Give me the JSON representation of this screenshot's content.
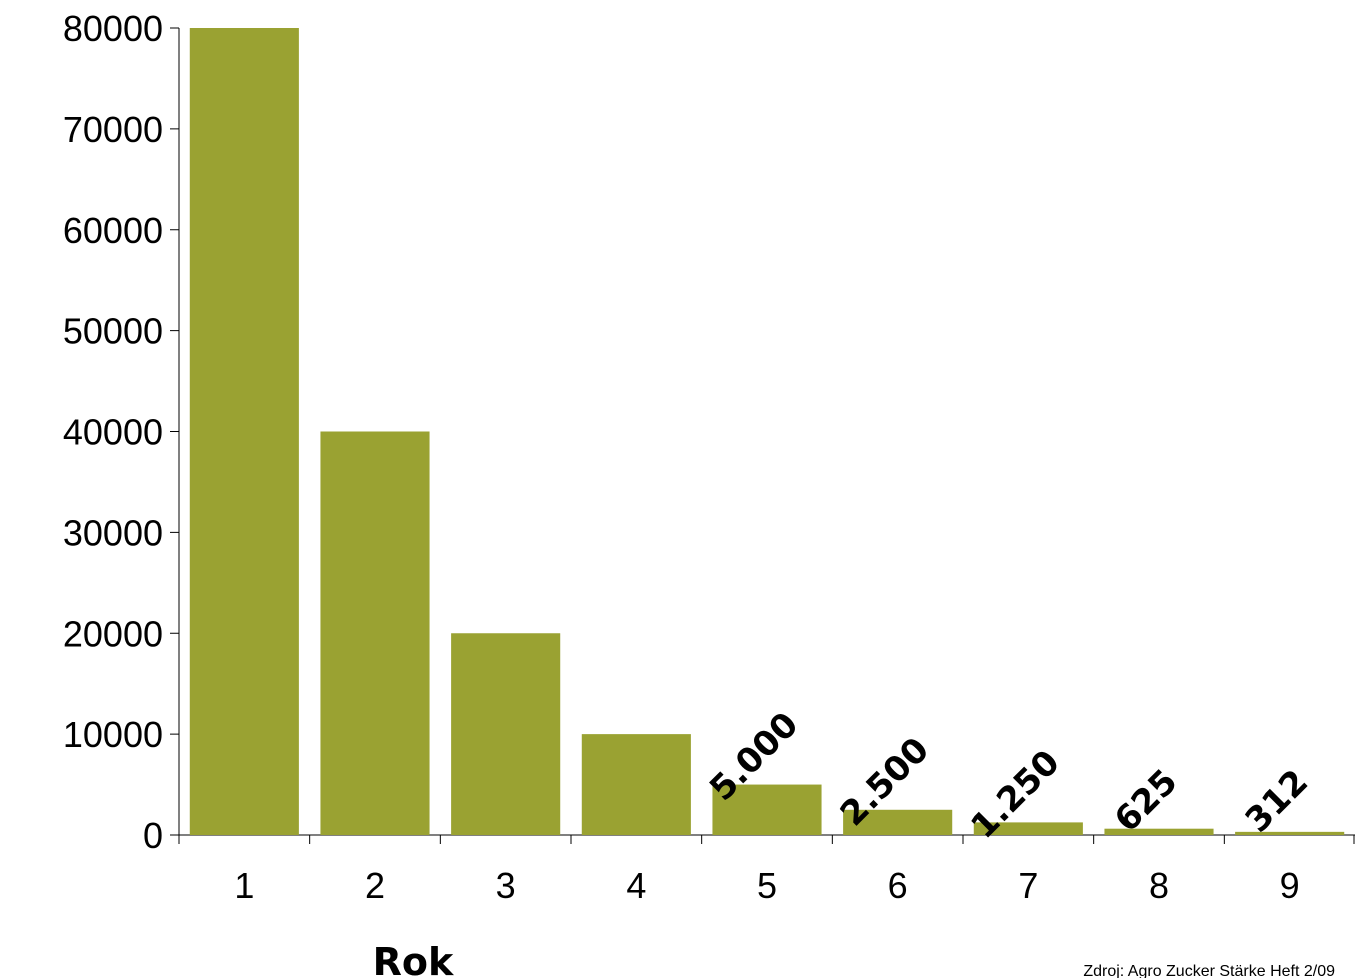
{
  "chart_data": {
    "type": "bar",
    "title": "",
    "xlabel": "Rok",
    "ylabel": "",
    "ylim": [
      0,
      80000
    ],
    "yticks": [
      0,
      10000,
      20000,
      30000,
      40000,
      50000,
      60000,
      70000,
      80000
    ],
    "categories": [
      "1",
      "2",
      "3",
      "4",
      "5",
      "6",
      "7",
      "8",
      "9"
    ],
    "values": [
      80000,
      40000,
      20000,
      10000,
      5000,
      2500,
      1250,
      625,
      312
    ],
    "data_labels": [
      "",
      "",
      "",
      "",
      "5.000",
      "2.500",
      "1.250",
      "625",
      "312"
    ],
    "bar_color": "#9aa232",
    "grid": false,
    "source_note": "Zdroj: Agro Zucker Stärke Heft 2/09"
  }
}
